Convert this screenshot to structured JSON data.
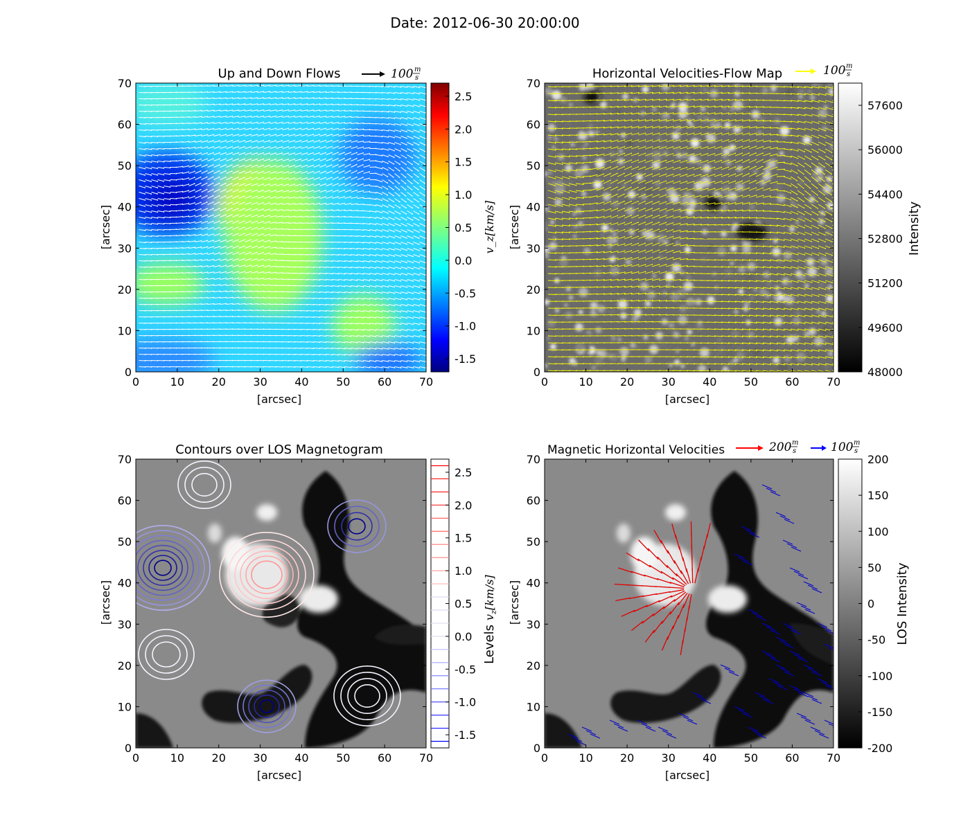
{
  "figure": {
    "title": "Date: 2012-06-30 20:00:00"
  },
  "chart_data": [
    {
      "type": "heatmap",
      "title": "Up and Down Flows",
      "xlabel": "[arcsec]",
      "ylabel": "[arcsec]",
      "xlim": [
        0,
        70
      ],
      "ylim": [
        0,
        70
      ],
      "xticks": [
        "0",
        "10",
        "20",
        "30",
        "40",
        "50",
        "60",
        "70"
      ],
      "yticks": [
        "0",
        "10",
        "20",
        "30",
        "40",
        "50",
        "60",
        "70"
      ],
      "overlay": "white velocity arrows",
      "arrow_key": {
        "label": "100",
        "unit_num": "m",
        "unit_den": "s",
        "color": "#000000"
      },
      "colorbar": {
        "label": "v_z[km/s]",
        "colormap": "jet",
        "range": [
          -1.7,
          2.7
        ],
        "ticks": [
          "2.5",
          "2.0",
          "1.5",
          "1.0",
          "0.5",
          "0.0",
          "-0.5",
          "-1.0",
          "-1.5"
        ]
      }
    },
    {
      "type": "heatmap",
      "title": "Horizontal Velocities-Flow Map",
      "xlabel": "[arcsec]",
      "ylabel": "[arcsec]",
      "xlim": [
        0,
        70
      ],
      "ylim": [
        0,
        70
      ],
      "xticks": [
        "0",
        "10",
        "20",
        "30",
        "40",
        "50",
        "60",
        "70"
      ],
      "yticks": [
        "0",
        "10",
        "20",
        "30",
        "40",
        "50",
        "60",
        "70"
      ],
      "overlay": "yellow velocity arrows over intensity image",
      "arrow_key": {
        "label": "100",
        "unit_num": "m",
        "unit_den": "s",
        "color": "#ffff00"
      },
      "colorbar": {
        "label": "Intensity",
        "colormap": "gray",
        "range": [
          48000,
          58400
        ],
        "ticks": [
          "57600",
          "56000",
          "54400",
          "52800",
          "51200",
          "49600",
          "48000"
        ]
      }
    },
    {
      "type": "heatmap",
      "title": "Contours over LOS Magnetogram",
      "xlabel": "[arcsec]",
      "ylabel": "[arcsec]",
      "xlim": [
        0,
        70
      ],
      "ylim": [
        0,
        70
      ],
      "xticks": [
        "0",
        "10",
        "20",
        "30",
        "40",
        "50",
        "60",
        "70"
      ],
      "yticks": [
        "0",
        "10",
        "20",
        "30",
        "40",
        "50",
        "60",
        "70"
      ],
      "overlay": "v_z contours (blue negative, white zero, red positive)",
      "colorbar": {
        "label": "Levels v_z[km/s]",
        "colormap": "bwr",
        "range": [
          -1.7,
          2.7
        ],
        "ticks": [
          "2.5",
          "2.0",
          "1.5",
          "1.0",
          "0.5",
          "0.0",
          "-0.5",
          "-1.0",
          "-1.5"
        ]
      }
    },
    {
      "type": "heatmap",
      "title": "Magnetic Horizontal Velocities",
      "xlabel": "[arcsec]",
      "ylabel": "[arcsec]",
      "xlim": [
        0,
        70
      ],
      "ylim": [
        0,
        70
      ],
      "xticks": [
        "0",
        "10",
        "20",
        "30",
        "40",
        "50",
        "60",
        "70"
      ],
      "yticks": [
        "0",
        "10",
        "20",
        "30",
        "40",
        "50",
        "60",
        "70"
      ],
      "overlay": "red arrows (positive polarity) and blue arrows (negative polarity)",
      "arrow_keys": [
        {
          "label": "200",
          "unit_num": "m",
          "unit_den": "s",
          "color": "#ff0000"
        },
        {
          "label": "100",
          "unit_num": "m",
          "unit_den": "s",
          "color": "#0000ff"
        }
      ],
      "colorbar": {
        "label": "LOS Intensity",
        "colormap": "gray",
        "range": [
          -200,
          200
        ],
        "ticks": [
          "200",
          "150",
          "100",
          "50",
          "0",
          "-50",
          "-100",
          "-150",
          "-200"
        ]
      }
    }
  ]
}
